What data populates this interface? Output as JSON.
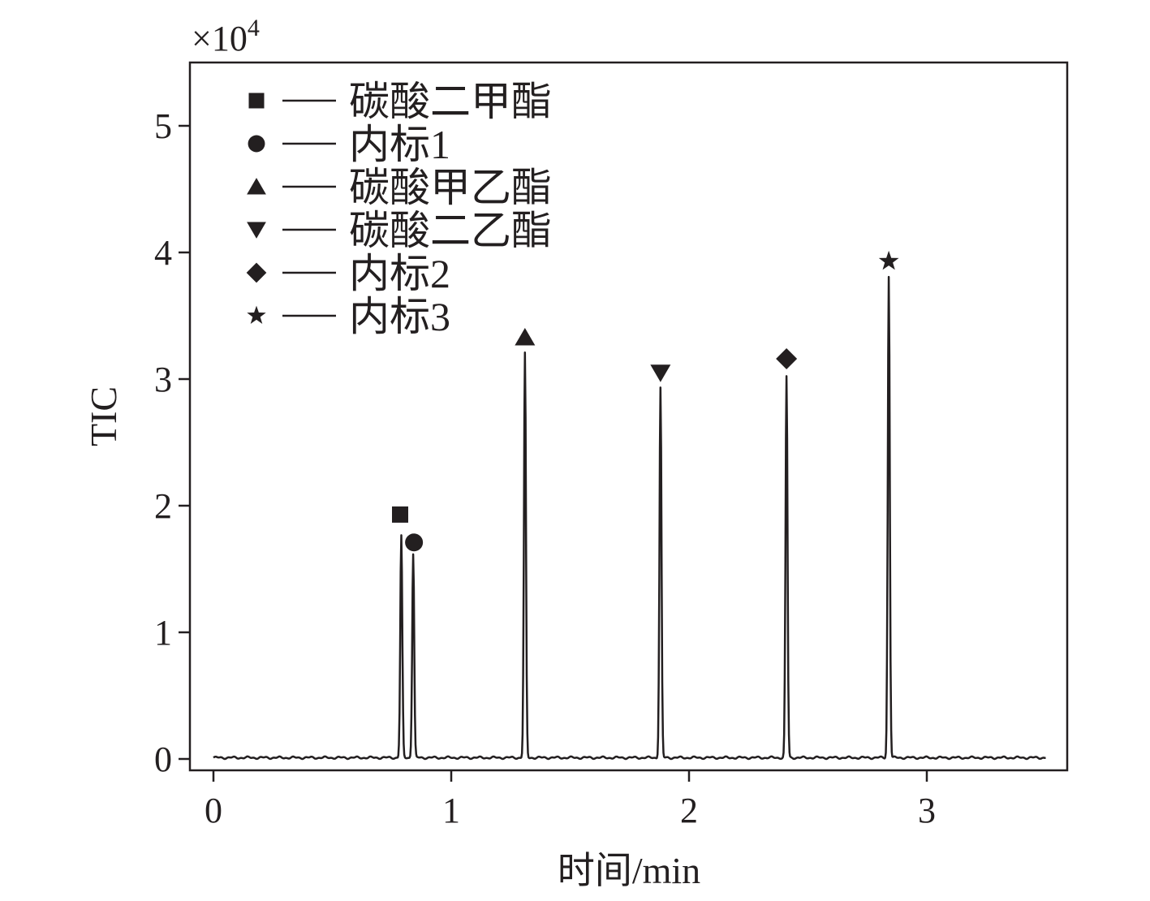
{
  "chart_data": {
    "type": "line",
    "xlabel": "时间/min",
    "ylabel": "TIC",
    "y_multiplier": "×10",
    "y_multiplier_exp": "4",
    "xlim": [
      -0.1,
      3.6
    ],
    "ylim": [
      -0.1,
      5.5
    ],
    "x_ticks": [
      0,
      1,
      2,
      3
    ],
    "x_tick_labels": [
      "0",
      "1",
      "2",
      "3"
    ],
    "y_ticks": [
      0,
      1,
      2,
      3,
      4,
      5
    ],
    "y_tick_labels": [
      "0",
      "1",
      "2",
      "3",
      "4",
      "5"
    ],
    "grid": false,
    "legend_position": "top-left",
    "line_color": "#231f20",
    "baseline": 0.01,
    "series": [
      {
        "peaks": [
          {
            "name": "碳酸二甲酯",
            "rt": 0.79,
            "height": 1.75,
            "marker": "square",
            "marker_y": 1.93
          },
          {
            "name": "内标1",
            "rt": 0.84,
            "height": 1.61,
            "marker": "circle",
            "marker_y": 1.71
          },
          {
            "name": "碳酸甲乙酯",
            "rt": 1.31,
            "height": 3.19,
            "marker": "triangle-up",
            "marker_y": 3.33
          },
          {
            "name": "碳酸二乙酯",
            "rt": 1.88,
            "height": 2.92,
            "marker": "triangle-down",
            "marker_y": 3.05
          },
          {
            "name": "内标2",
            "rt": 2.41,
            "height": 3.01,
            "marker": "diamond",
            "marker_y": 3.16
          },
          {
            "name": "内标3",
            "rt": 2.84,
            "height": 3.8,
            "marker": "star",
            "marker_y": 3.93
          }
        ],
        "x_range": [
          0,
          3.5
        ]
      }
    ]
  }
}
